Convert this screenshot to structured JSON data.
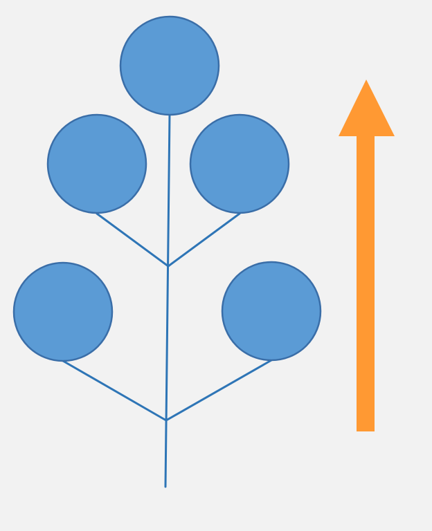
{
  "diagram": {
    "kind": "branching-tree-with-growth-arrow",
    "node_count": 5,
    "colors": {
      "background": "#f2f2f2",
      "node_fill": "#5b9bd5",
      "node_stroke": "#3a6ea8",
      "branch_stroke": "#2e75b6",
      "arrow_fill": "#ff9933"
    },
    "nodes": [
      {
        "id": "top"
      },
      {
        "id": "upper-left"
      },
      {
        "id": "upper-right"
      },
      {
        "id": "lower-left"
      },
      {
        "id": "lower-right"
      }
    ],
    "arrow": {
      "direction": "up"
    }
  }
}
